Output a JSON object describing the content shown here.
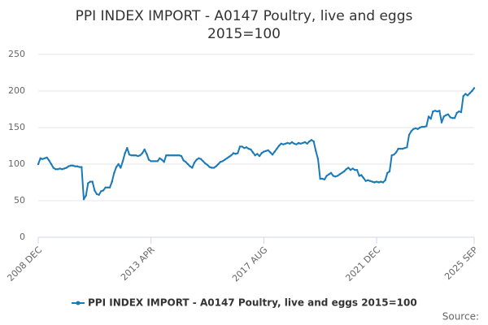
{
  "chart_data": {
    "type": "line",
    "title": [
      "PPI INDEX IMPORT - A0147 Poultry, live and eggs",
      "2015=100"
    ],
    "categories": [
      "2008 DEC",
      null,
      null,
      null,
      null,
      null,
      null,
      null,
      null,
      null,
      null,
      null,
      null,
      null,
      null,
      null,
      null,
      null,
      null,
      null,
      null,
      null,
      null,
      null,
      null,
      null,
      null,
      null,
      null,
      null,
      null,
      null,
      null,
      null,
      null,
      null,
      null,
      null,
      null,
      null,
      null,
      null,
      null,
      null,
      null,
      null,
      null,
      null,
      null,
      null,
      null,
      null,
      "2013 APR",
      null,
      null,
      null,
      null,
      null,
      null,
      null,
      null,
      null,
      null,
      null,
      null,
      null,
      null,
      null,
      null,
      null,
      null,
      null,
      null,
      null,
      null,
      null,
      null,
      null,
      null,
      null,
      null,
      null,
      null,
      null,
      null,
      null,
      null,
      null,
      null,
      null,
      null,
      null,
      null,
      null,
      null,
      null,
      null,
      null,
      null,
      null,
      null,
      null,
      null,
      null,
      "2017 AUG",
      null,
      null,
      null,
      null,
      null,
      null,
      null,
      null,
      null,
      null,
      null,
      null,
      null,
      null,
      null,
      null,
      null,
      null,
      null,
      null,
      null,
      null,
      null,
      null,
      null,
      null,
      null,
      null,
      null,
      null,
      null,
      null,
      null,
      null,
      null,
      null,
      null,
      null,
      null,
      null,
      null,
      null,
      null,
      null,
      null,
      null,
      null,
      null,
      null,
      null,
      null,
      "2021 DEC",
      null,
      null,
      null,
      null,
      null,
      null,
      null,
      null,
      null,
      null,
      null,
      null,
      null,
      null,
      null,
      null,
      null,
      null,
      null,
      null,
      null,
      null,
      null,
      null,
      null,
      null,
      null,
      null,
      null,
      null,
      null,
      null,
      null,
      null,
      null,
      null,
      null,
      null,
      null,
      null,
      null,
      null,
      null,
      null,
      "2025 SEP"
    ],
    "series": [
      {
        "name": "PPI INDEX IMPORT - A0147 Poultry, live and eggs 2015=100",
        "color": "#1a7ab8",
        "values": [
          100,
          108,
          107,
          108,
          109,
          105,
          100,
          95,
          93,
          93,
          94,
          93,
          94,
          95,
          97,
          98,
          98,
          97,
          97,
          96,
          96,
          52,
          57,
          74,
          76,
          76,
          64,
          59,
          58,
          63,
          64,
          68,
          68,
          68,
          76,
          88,
          96,
          100,
          95,
          104,
          115,
          122,
          113,
          112,
          112,
          112,
          111,
          112,
          115,
          120,
          114,
          106,
          104,
          104,
          104,
          104,
          108,
          106,
          103,
          112,
          112,
          112,
          112,
          112,
          112,
          112,
          111,
          105,
          103,
          100,
          97,
          95,
          102,
          106,
          108,
          107,
          104,
          101,
          99,
          96,
          95,
          95,
          97,
          100,
          103,
          104,
          106,
          108,
          110,
          112,
          115,
          114,
          115,
          124,
          124,
          122,
          123,
          121,
          120,
          116,
          112,
          114,
          111,
          115,
          117,
          118,
          119,
          116,
          113,
          117,
          121,
          125,
          128,
          127,
          128,
          129,
          128,
          130,
          128,
          127,
          129,
          128,
          129,
          130,
          128,
          131,
          133,
          131,
          118,
          107,
          80,
          80,
          79,
          84,
          86,
          88,
          84,
          83,
          84,
          86,
          88,
          90,
          93,
          95,
          92,
          94,
          92,
          92,
          84,
          85,
          81,
          77,
          78,
          77,
          76,
          75,
          76,
          75,
          76,
          75,
          78,
          88,
          90,
          112,
          113,
          116,
          121,
          121,
          121,
          122,
          123,
          140,
          145,
          148,
          149,
          148,
          150,
          151,
          151,
          152,
          165,
          162,
          172,
          173,
          172,
          173,
          157,
          165,
          167,
          168,
          164,
          163,
          163,
          170,
          172,
          171,
          193,
          196,
          194,
          197,
          200,
          204
        ]
      }
    ],
    "ylim": [
      0,
      250
    ],
    "yticks": [
      0,
      50,
      100,
      150,
      200,
      250
    ],
    "grid": true,
    "legend": "bottom",
    "source": "Source:"
  }
}
